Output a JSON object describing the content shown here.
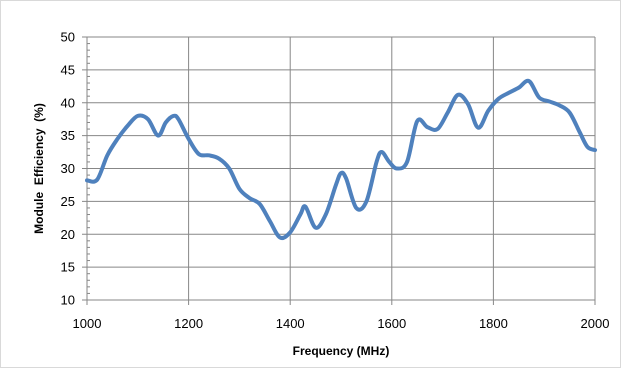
{
  "chart_data": {
    "type": "line",
    "title": "",
    "xlabel": "Frequency (MHz)",
    "ylabel": "Module  Efficiency  (%)",
    "xlim": [
      1000,
      2000
    ],
    "ylim": [
      10,
      50
    ],
    "x_ticks": [
      1000,
      1200,
      1400,
      1600,
      1800,
      2000
    ],
    "y_ticks": [
      10,
      15,
      20,
      25,
      30,
      35,
      40,
      45,
      50
    ],
    "y_minor_step": 1,
    "grid": true,
    "legend": "none",
    "line_color": "#4f81bd",
    "series": [
      {
        "x": [
          1000,
          1020,
          1040,
          1060,
          1080,
          1100,
          1120,
          1140,
          1155,
          1170,
          1180,
          1200,
          1220,
          1240,
          1260,
          1280,
          1300,
          1320,
          1340,
          1360,
          1380,
          1400,
          1420,
          1430,
          1450,
          1470,
          1490,
          1500,
          1510,
          1530,
          1550,
          1570,
          1580,
          1595,
          1610,
          1630,
          1650,
          1670,
          1690,
          1710,
          1730,
          1750,
          1770,
          1790,
          1810,
          1830,
          1850,
          1870,
          1890,
          1910,
          1930,
          1950,
          1970,
          1985,
          2000
        ],
        "y": [
          28.2,
          28.3,
          32,
          34.5,
          36.5,
          38,
          37.5,
          35,
          37,
          38,
          37.5,
          34.5,
          32.2,
          32,
          31.5,
          30,
          26.9,
          25.5,
          24.6,
          22,
          19.5,
          20.3,
          23,
          24.2,
          21,
          23,
          27.5,
          29.3,
          28.5,
          24,
          25,
          31,
          32.5,
          31,
          30,
          31,
          37.2,
          36.3,
          36,
          38.5,
          41.2,
          39.8,
          36.2,
          38.8,
          40.6,
          41.5,
          42.3,
          43.3,
          40.8,
          40.2,
          39.6,
          38.5,
          35.5,
          33.3,
          32.8
        ]
      }
    ]
  }
}
